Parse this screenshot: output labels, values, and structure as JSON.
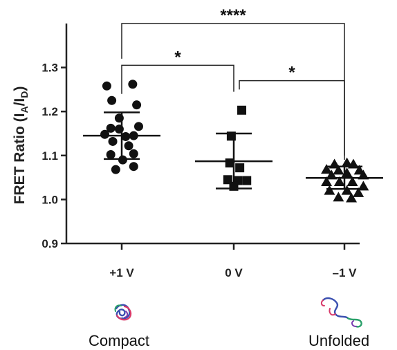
{
  "chart_data": {
    "type": "scatter",
    "ylabel": "FRET Ratio (IA/ID)",
    "ylabel_parts": {
      "prefix": "FRET Ratio (I",
      "sub1": "A",
      "slash": "/I",
      "sub2": "D",
      "suffix": ")"
    },
    "ylim": [
      0.9,
      1.4
    ],
    "yticks": [
      "0.9",
      "1.0",
      "1.1",
      "1.2",
      "1.3"
    ],
    "categories": [
      "+1 V",
      "0 V",
      "–1 V"
    ],
    "grid": false,
    "groups": [
      {
        "label": "+1 V",
        "marker": "circle",
        "mean": 1.145,
        "sd_low": 1.092,
        "sd_high": 1.198,
        "points": [
          {
            "dx": -0.3,
            "y": 1.258
          },
          {
            "dx": 0.22,
            "y": 1.262
          },
          {
            "dx": -0.2,
            "y": 1.225
          },
          {
            "dx": 0.3,
            "y": 1.215
          },
          {
            "dx": -0.05,
            "y": 1.185
          },
          {
            "dx": 0.34,
            "y": 1.166
          },
          {
            "dx": -0.22,
            "y": 1.162
          },
          {
            "dx": -0.05,
            "y": 1.16
          },
          {
            "dx": -0.34,
            "y": 1.148
          },
          {
            "dx": 0.08,
            "y": 1.143
          },
          {
            "dx": 0.24,
            "y": 1.145
          },
          {
            "dx": -0.18,
            "y": 1.132
          },
          {
            "dx": 0.14,
            "y": 1.122
          },
          {
            "dx": -0.22,
            "y": 1.102
          },
          {
            "dx": 0.24,
            "y": 1.104
          },
          {
            "dx": 0.02,
            "y": 1.09
          },
          {
            "dx": 0.24,
            "y": 1.075
          },
          {
            "dx": -0.12,
            "y": 1.068
          }
        ]
      },
      {
        "label": "0 V",
        "marker": "square",
        "mean": 1.087,
        "sd_low": 1.025,
        "sd_high": 1.15,
        "points": [
          {
            "dx": 0.16,
            "y": 1.203
          },
          {
            "dx": -0.05,
            "y": 1.144
          },
          {
            "dx": -0.08,
            "y": 1.083
          },
          {
            "dx": 0.12,
            "y": 1.072
          },
          {
            "dx": -0.12,
            "y": 1.045
          },
          {
            "dx": 0.08,
            "y": 1.043
          },
          {
            "dx": 0.26,
            "y": 1.043
          },
          {
            "dx": 0.0,
            "y": 1.03
          }
        ]
      },
      {
        "label": "–1 V",
        "marker": "triangle",
        "mean": 1.049,
        "sd_low": 1.024,
        "sd_high": 1.075,
        "points": [
          {
            "dx": -0.2,
            "y": 1.08
          },
          {
            "dx": 0.05,
            "y": 1.083
          },
          {
            "dx": 0.18,
            "y": 1.08
          },
          {
            "dx": -0.36,
            "y": 1.068
          },
          {
            "dx": -0.12,
            "y": 1.066
          },
          {
            "dx": 0.3,
            "y": 1.066
          },
          {
            "dx": -0.26,
            "y": 1.055
          },
          {
            "dx": 0.05,
            "y": 1.06
          },
          {
            "dx": 0.38,
            "y": 1.055
          },
          {
            "dx": -0.36,
            "y": 1.04
          },
          {
            "dx": -0.1,
            "y": 1.04
          },
          {
            "dx": 0.16,
            "y": 1.04
          },
          {
            "dx": 0.38,
            "y": 1.03
          },
          {
            "dx": -0.3,
            "y": 1.02
          },
          {
            "dx": 0.05,
            "y": 1.02
          },
          {
            "dx": 0.28,
            "y": 1.015
          },
          {
            "dx": -0.12,
            "y": 1.005
          },
          {
            "dx": 0.14,
            "y": 1.003
          }
        ]
      }
    ],
    "significance": [
      {
        "from": 0,
        "to": 1,
        "label": "*",
        "level": 1.305
      },
      {
        "from": 1,
        "to": 2,
        "label": "*",
        "level": 1.27
      },
      {
        "from": 0,
        "to": 2,
        "label": "****",
        "level": 1.4
      }
    ]
  },
  "captions": {
    "left": "Compact",
    "right": "Unfolded"
  },
  "illustrations": {
    "left": "compact-protein-icon",
    "right": "unfolded-protein-icon"
  }
}
